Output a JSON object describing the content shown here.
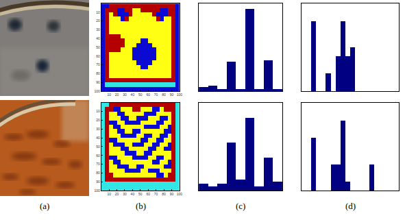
{
  "captions": [
    "(a)",
    "(b)",
    "(c)",
    "(d)"
  ],
  "chart_data": [
    {
      "type": "heatmap",
      "x": [
        2.5,
        7.5,
        12.5,
        17.5,
        22.5,
        27.5,
        32.5,
        37.5,
        42.5,
        47.5,
        52.5,
        57.5,
        62.5,
        67.5,
        72.5,
        77.5,
        82.5,
        87.5,
        92.5,
        97.5
      ],
      "y": [
        2.5,
        7.5,
        12.5,
        17.5,
        22.5,
        27.5,
        32.5,
        37.5,
        42.5,
        47.5,
        52.5,
        57.5,
        62.5,
        67.5,
        72.5,
        77.5,
        82.5,
        87.5,
        92.5,
        97.5
      ],
      "colors": [
        "#0a0ad2",
        "#33e6e6",
        "#ffff14",
        "#b40000"
      ],
      "cells": [
        [
          0,
          0,
          3,
          3,
          3,
          3,
          3,
          3,
          3,
          3,
          3,
          3,
          3,
          3,
          3,
          3,
          3,
          3,
          3,
          0
        ],
        [
          0,
          3,
          3,
          3,
          0,
          0,
          3,
          3,
          2,
          2,
          3,
          3,
          3,
          3,
          3,
          0,
          0,
          3,
          3,
          0
        ],
        [
          0,
          3,
          2,
          3,
          0,
          0,
          0,
          3,
          2,
          2,
          2,
          2,
          2,
          3,
          0,
          0,
          0,
          3,
          3,
          0
        ],
        [
          0,
          3,
          2,
          2,
          2,
          0,
          3,
          2,
          2,
          2,
          2,
          2,
          2,
          2,
          3,
          0,
          2,
          2,
          3,
          0
        ],
        [
          0,
          3,
          2,
          2,
          2,
          2,
          2,
          2,
          2,
          2,
          2,
          2,
          2,
          2,
          2,
          2,
          2,
          2,
          3,
          0
        ],
        [
          0,
          3,
          2,
          2,
          2,
          2,
          2,
          2,
          2,
          2,
          2,
          2,
          2,
          2,
          2,
          2,
          2,
          2,
          3,
          0
        ],
        [
          0,
          3,
          2,
          2,
          2,
          2,
          2,
          2,
          2,
          2,
          2,
          2,
          2,
          2,
          2,
          2,
          2,
          2,
          3,
          0
        ],
        [
          0,
          3,
          3,
          3,
          3,
          2,
          2,
          2,
          2,
          2,
          2,
          2,
          2,
          2,
          2,
          2,
          2,
          2,
          3,
          0
        ],
        [
          0,
          3,
          3,
          3,
          3,
          3,
          2,
          2,
          2,
          2,
          0,
          0,
          2,
          2,
          2,
          2,
          2,
          2,
          3,
          0
        ],
        [
          0,
          3,
          3,
          3,
          3,
          3,
          2,
          2,
          2,
          0,
          0,
          0,
          0,
          2,
          2,
          2,
          2,
          2,
          3,
          0
        ],
        [
          0,
          3,
          3,
          3,
          3,
          2,
          2,
          2,
          0,
          0,
          0,
          0,
          0,
          0,
          2,
          2,
          2,
          2,
          3,
          0
        ],
        [
          0,
          3,
          2,
          2,
          2,
          2,
          2,
          2,
          0,
          0,
          0,
          0,
          0,
          0,
          2,
          2,
          2,
          2,
          3,
          0
        ],
        [
          0,
          3,
          2,
          2,
          2,
          2,
          2,
          2,
          0,
          0,
          0,
          0,
          0,
          0,
          2,
          2,
          2,
          2,
          3,
          0
        ],
        [
          0,
          3,
          2,
          2,
          2,
          2,
          2,
          2,
          2,
          0,
          0,
          0,
          0,
          2,
          2,
          2,
          2,
          2,
          3,
          0
        ],
        [
          0,
          3,
          2,
          2,
          2,
          2,
          2,
          2,
          2,
          2,
          0,
          0,
          2,
          2,
          2,
          2,
          2,
          2,
          3,
          0
        ],
        [
          0,
          3,
          2,
          2,
          2,
          2,
          2,
          2,
          2,
          2,
          2,
          2,
          2,
          2,
          2,
          2,
          2,
          2,
          3,
          0
        ],
        [
          0,
          3,
          2,
          2,
          2,
          2,
          2,
          2,
          2,
          2,
          2,
          2,
          2,
          2,
          2,
          2,
          2,
          2,
          3,
          0
        ],
        [
          0,
          3,
          3,
          3,
          3,
          3,
          3,
          3,
          3,
          3,
          3,
          3,
          3,
          3,
          3,
          3,
          3,
          3,
          3,
          0
        ],
        [
          0,
          1,
          1,
          1,
          1,
          1,
          1,
          1,
          1,
          1,
          1,
          1,
          1,
          1,
          1,
          1,
          1,
          1,
          1,
          0
        ],
        [
          0,
          0,
          0,
          0,
          0,
          0,
          0,
          0,
          0,
          0,
          0,
          0,
          0,
          0,
          0,
          0,
          0,
          0,
          0,
          0
        ]
      ],
      "xlim": [
        0,
        100
      ],
      "ylim": [
        100,
        0
      ],
      "xticks": [
        10,
        20,
        30,
        40,
        50,
        60,
        70,
        80,
        90,
        100
      ],
      "yticks": [
        10,
        20,
        30,
        40,
        50,
        60,
        70,
        80,
        90,
        100
      ]
    },
    {
      "type": "heatmap",
      "x": [
        2.5,
        7.5,
        12.5,
        17.5,
        22.5,
        27.5,
        32.5,
        37.5,
        42.5,
        47.5,
        52.5,
        57.5,
        62.5,
        67.5,
        72.5,
        77.5,
        82.5,
        87.5,
        92.5,
        97.5
      ],
      "y": [
        2.5,
        7.5,
        12.5,
        17.5,
        22.5,
        27.5,
        32.5,
        37.5,
        42.5,
        47.5,
        52.5,
        57.5,
        62.5,
        67.5,
        72.5,
        77.5,
        82.5,
        87.5,
        92.5,
        97.5
      ],
      "colors": [
        "#0a0ad2",
        "#33e6e6",
        "#ffff14",
        "#b40000"
      ],
      "cells": [
        [
          1,
          1,
          3,
          3,
          3,
          3,
          3,
          3,
          3,
          3,
          3,
          3,
          3,
          3,
          3,
          3,
          3,
          3,
          3,
          1
        ],
        [
          1,
          3,
          3,
          0,
          0,
          2,
          2,
          2,
          3,
          3,
          2,
          2,
          2,
          0,
          0,
          2,
          3,
          3,
          3,
          1
        ],
        [
          1,
          3,
          2,
          2,
          0,
          0,
          2,
          2,
          2,
          2,
          2,
          0,
          0,
          0,
          2,
          2,
          2,
          2,
          3,
          1
        ],
        [
          1,
          3,
          2,
          2,
          2,
          0,
          0,
          2,
          2,
          0,
          0,
          0,
          2,
          2,
          2,
          0,
          0,
          2,
          3,
          1
        ],
        [
          1,
          3,
          0,
          0,
          2,
          2,
          0,
          0,
          0,
          0,
          2,
          2,
          2,
          2,
          0,
          0,
          2,
          2,
          3,
          1
        ],
        [
          1,
          3,
          2,
          0,
          0,
          2,
          2,
          2,
          2,
          2,
          2,
          0,
          0,
          0,
          0,
          2,
          2,
          0,
          3,
          1
        ],
        [
          1,
          3,
          2,
          2,
          0,
          0,
          2,
          2,
          0,
          0,
          2,
          2,
          2,
          2,
          2,
          2,
          0,
          0,
          3,
          1
        ],
        [
          1,
          3,
          2,
          2,
          2,
          0,
          0,
          0,
          0,
          2,
          2,
          0,
          0,
          2,
          2,
          0,
          0,
          2,
          3,
          1
        ],
        [
          1,
          3,
          0,
          0,
          2,
          2,
          2,
          2,
          2,
          2,
          0,
          0,
          2,
          2,
          0,
          0,
          2,
          2,
          3,
          1
        ],
        [
          1,
          3,
          2,
          0,
          0,
          0,
          2,
          2,
          0,
          0,
          0,
          2,
          2,
          0,
          0,
          2,
          2,
          0,
          3,
          1
        ],
        [
          1,
          3,
          2,
          2,
          2,
          0,
          0,
          2,
          2,
          2,
          2,
          2,
          0,
          0,
          2,
          2,
          0,
          0,
          3,
          1
        ],
        [
          1,
          3,
          2,
          2,
          2,
          2,
          0,
          0,
          0,
          2,
          2,
          0,
          0,
          2,
          2,
          2,
          2,
          2,
          3,
          1
        ],
        [
          1,
          3,
          0,
          0,
          2,
          2,
          2,
          2,
          0,
          0,
          0,
          0,
          2,
          2,
          0,
          0,
          2,
          2,
          3,
          1
        ],
        [
          1,
          3,
          2,
          0,
          0,
          2,
          2,
          2,
          2,
          2,
          2,
          2,
          2,
          0,
          0,
          2,
          2,
          0,
          3,
          1
        ],
        [
          1,
          3,
          2,
          2,
          0,
          0,
          0,
          2,
          2,
          0,
          0,
          2,
          2,
          2,
          2,
          2,
          0,
          0,
          3,
          1
        ],
        [
          1,
          3,
          2,
          2,
          2,
          2,
          0,
          0,
          0,
          0,
          2,
          2,
          0,
          0,
          0,
          2,
          2,
          2,
          3,
          1
        ],
        [
          1,
          3,
          3,
          2,
          2,
          2,
          2,
          2,
          2,
          2,
          2,
          2,
          2,
          2,
          0,
          0,
          2,
          3,
          3,
          1
        ],
        [
          1,
          3,
          3,
          3,
          3,
          3,
          3,
          3,
          3,
          3,
          3,
          3,
          3,
          3,
          3,
          3,
          3,
          3,
          3,
          1
        ],
        [
          1,
          1,
          1,
          1,
          1,
          1,
          1,
          1,
          1,
          1,
          1,
          1,
          1,
          1,
          1,
          1,
          1,
          1,
          1,
          1
        ],
        [
          1,
          1,
          1,
          1,
          1,
          1,
          1,
          1,
          1,
          1,
          1,
          1,
          1,
          1,
          1,
          1,
          1,
          1,
          1,
          1
        ]
      ],
      "xlim": [
        0,
        100
      ],
      "ylim": [
        100,
        0
      ],
      "xticks": [
        10,
        20,
        30,
        40,
        50,
        60,
        70,
        80,
        90,
        100
      ],
      "yticks": [
        10,
        20,
        30,
        40,
        50,
        60,
        70,
        80,
        90,
        100
      ]
    },
    {
      "type": "histogram",
      "color": "#000080",
      "tick_labels": false,
      "bins": [
        0,
        1,
        2,
        3,
        4,
        5,
        6,
        7,
        8,
        9
      ],
      "values": [
        2,
        3,
        1,
        16,
        1,
        45,
        1,
        17,
        1
      ],
      "xlim": [
        0,
        9
      ],
      "ylim": [
        0,
        48
      ]
    },
    {
      "type": "histogram",
      "color": "#000080",
      "tick_labels": false,
      "bins": [
        0,
        1,
        2,
        3,
        4,
        5,
        6,
        7,
        8,
        9
      ],
      "values": [
        3,
        2,
        3,
        22,
        5,
        33,
        2,
        15,
        4
      ],
      "xlim": [
        0,
        9
      ],
      "ylim": [
        0,
        40
      ]
    },
    {
      "type": "histogram",
      "color": "#000080",
      "tick_labels": false,
      "bins": [
        0,
        1,
        2,
        3,
        4,
        5,
        6,
        7,
        8,
        9,
        10,
        11,
        12,
        13,
        14,
        15,
        16,
        17,
        18,
        19,
        20
      ],
      "values": [
        0,
        0,
        8,
        0,
        0,
        2,
        0,
        4,
        8,
        4,
        5,
        0,
        0,
        0,
        0,
        0,
        0,
        0,
        0,
        0
      ],
      "xlim": [
        0,
        20
      ],
      "ylim": [
        0,
        10
      ]
    },
    {
      "type": "histogram",
      "color": "#000080",
      "tick_labels": false,
      "bins": [
        0,
        1,
        2,
        3,
        4,
        5,
        6,
        7,
        8,
        9,
        10,
        11,
        12,
        13,
        14,
        15,
        16,
        17,
        18,
        19,
        20
      ],
      "values": [
        0,
        0,
        6,
        0,
        0,
        0,
        3,
        3,
        8,
        1,
        0,
        0,
        0,
        0,
        3,
        0,
        0,
        0,
        0,
        0
      ],
      "xlim": [
        0,
        20
      ],
      "ylim": [
        0,
        10
      ]
    }
  ]
}
